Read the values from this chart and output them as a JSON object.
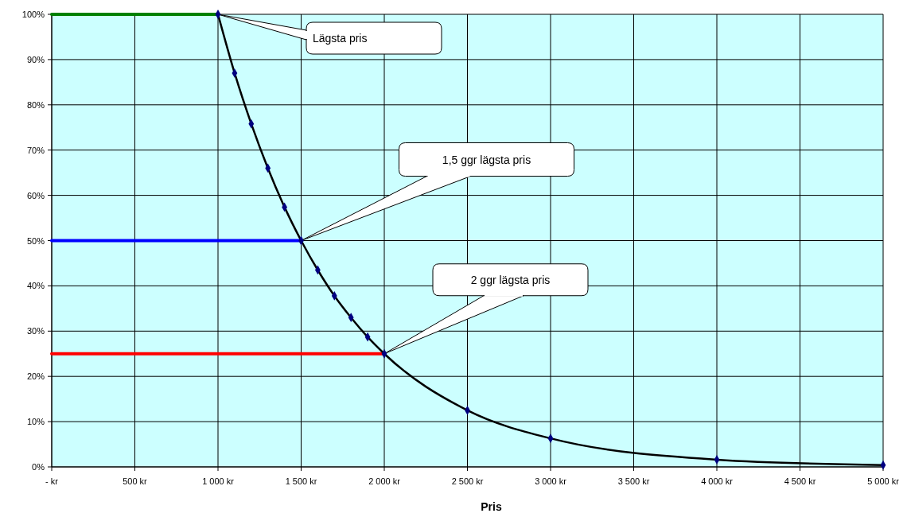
{
  "chart_data": {
    "type": "line",
    "xlabel": "Pris",
    "x": [
      1000,
      1100,
      1200,
      1300,
      1400,
      1500,
      1600,
      1700,
      1800,
      1900,
      2000,
      2500,
      3000,
      4000,
      5000
    ],
    "series": [
      {
        "color": "#000000",
        "marker": "diamond",
        "values": [
          100,
          87,
          75.8,
          66,
          57.4,
          50,
          43.5,
          37.8,
          33,
          28.7,
          25,
          12.5,
          6.3,
          1.6,
          0.4
        ]
      },
      {
        "color": "#008000",
        "marker": "none",
        "x": [
          0,
          1000
        ],
        "values": [
          100,
          100
        ]
      },
      {
        "color": "#0000ff",
        "marker": "none",
        "x": [
          0,
          1500
        ],
        "values": [
          50,
          50
        ]
      },
      {
        "color": "#ff0000",
        "marker": "none",
        "x": [
          0,
          2000
        ],
        "values": [
          25,
          25
        ]
      }
    ],
    "xlim": [
      0,
      5000
    ],
    "xticks": [
      {
        "value": 0,
        "label": "-   kr"
      },
      {
        "value": 500,
        "label": "500 kr"
      },
      {
        "value": 1000,
        "label": "1 000 kr"
      },
      {
        "value": 1500,
        "label": "1 500 kr"
      },
      {
        "value": 2000,
        "label": "2 000 kr"
      },
      {
        "value": 2500,
        "label": "2 500 kr"
      },
      {
        "value": 3000,
        "label": "3 000 kr"
      },
      {
        "value": 3500,
        "label": "3 500 kr"
      },
      {
        "value": 4000,
        "label": "4 000 kr"
      },
      {
        "value": 4500,
        "label": "4 500 kr"
      },
      {
        "value": 5000,
        "label": "5 000 kr"
      }
    ],
    "ylim": [
      0,
      100
    ],
    "yticks": [
      {
        "value": 0,
        "label": "0%"
      },
      {
        "value": 10,
        "label": "10%"
      },
      {
        "value": 20,
        "label": "20%"
      },
      {
        "value": 30,
        "label": "30%"
      },
      {
        "value": 40,
        "label": "40%"
      },
      {
        "value": 50,
        "label": "50%"
      },
      {
        "value": 60,
        "label": "60%"
      },
      {
        "value": 70,
        "label": "70%"
      },
      {
        "value": 80,
        "label": "80%"
      },
      {
        "value": 90,
        "label": "90%"
      },
      {
        "value": 100,
        "label": "100%"
      }
    ],
    "grid": true,
    "annotations": [
      {
        "text": "Lägsta pris",
        "x": 1000,
        "y": 100
      },
      {
        "text": "1,5 ggr lägsta pris",
        "x": 1500,
        "y": 50
      },
      {
        "text": "2 ggr lägsta pris",
        "x": 2000,
        "y": 25
      }
    ]
  }
}
